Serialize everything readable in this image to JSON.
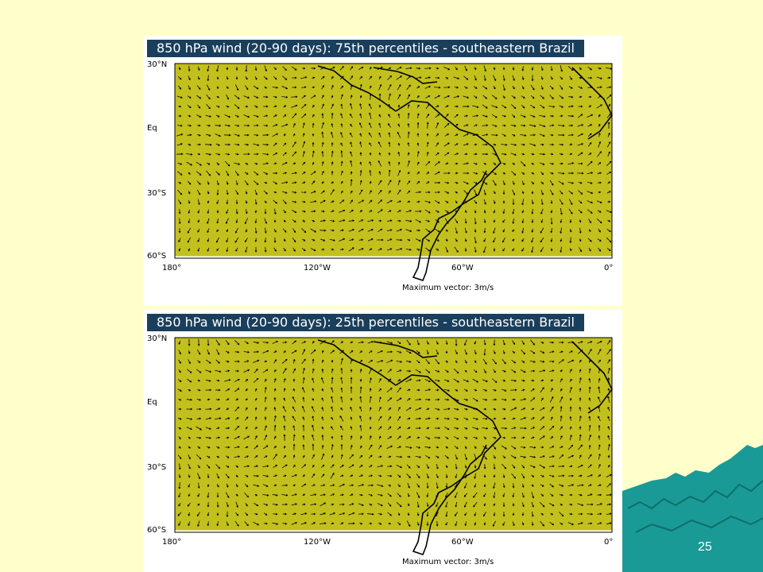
{
  "slide": {
    "number": "25",
    "background_color": "#ffffcc",
    "decoration": "teal-mountain-silhouette"
  },
  "colors": {
    "shading": "#c2c01c",
    "banner_bg": "#1a3f5c",
    "banner_text": "#ffffff",
    "vectors": "#000000"
  },
  "panels": [
    {
      "title": "850 hPa wind (20-90 days): 75th percentiles - southeastern Brazil",
      "y_ticks": [
        "30°N",
        "Eq",
        "30°S",
        "60°S"
      ],
      "x_ticks": [
        "180°",
        "120°W",
        "60°W",
        "0°"
      ],
      "vector_note": "Maximum vector: 3m/s",
      "coverage": "mostly shaded over the South American region"
    },
    {
      "title": "850 hPa wind (20-90 days): 25th percentiles - southeastern Brazil",
      "y_ticks": [
        "30°N",
        "Eq",
        "30°S",
        "60°S"
      ],
      "x_ticks": [
        "180°",
        "120°W",
        "60°W",
        "0°"
      ],
      "vector_note": "Maximum vector: 3m/s",
      "coverage": "widespread shading, tropical Pacific band"
    }
  ]
}
